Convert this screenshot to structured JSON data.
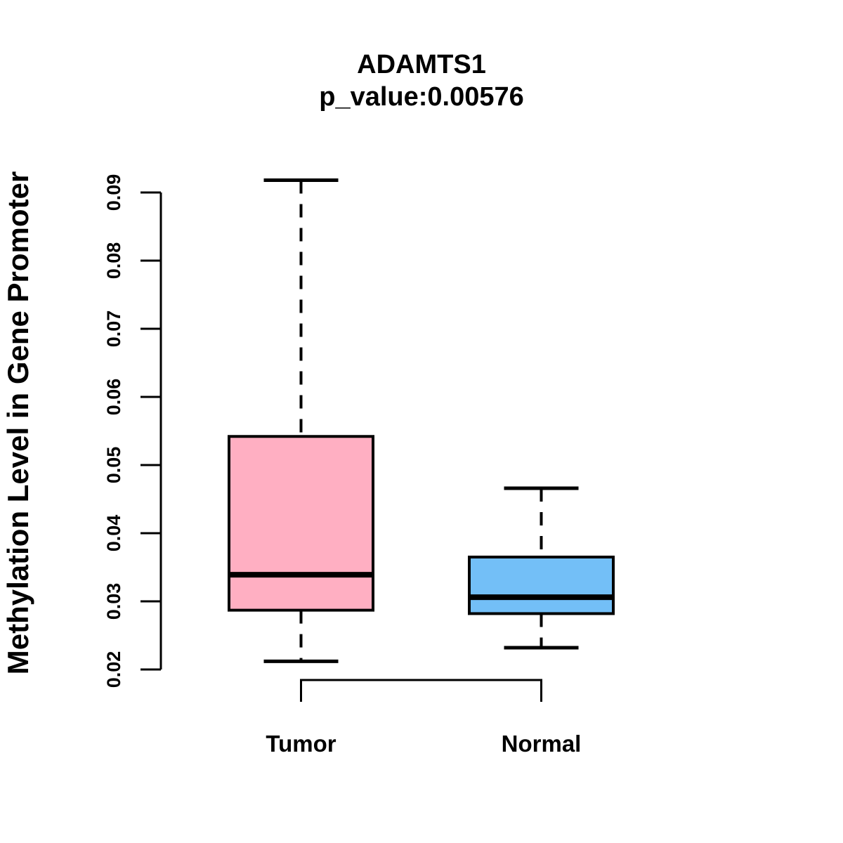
{
  "title": "ADAMTS1",
  "subtitle": "p_value:0.00576",
  "chart_data": {
    "type": "boxplot",
    "title": "ADAMTS1",
    "subtitle": "p_value:0.00576",
    "xlabel": "",
    "ylabel": "Methylation Level in Gene Promoter",
    "ylim": [
      0.02,
      0.09
    ],
    "grid": false,
    "legend": "none",
    "y_ticks": [
      {
        "label": "0.02",
        "value": 0.02
      },
      {
        "label": "0.03",
        "value": 0.03
      },
      {
        "label": "0.04",
        "value": 0.04
      },
      {
        "label": "0.05",
        "value": 0.05
      },
      {
        "label": "0.06",
        "value": 0.06
      },
      {
        "label": "0.07",
        "value": 0.07
      },
      {
        "label": "0.08",
        "value": 0.08
      },
      {
        "label": "0.09",
        "value": 0.09
      }
    ],
    "categories": [
      "Tumor",
      "Normal"
    ],
    "series": [
      {
        "name": "Tumor",
        "fill_color": "#FFAFC2",
        "stroke_color": "#000000",
        "whisker_low": 0.0212,
        "q1": 0.0287,
        "median": 0.0339,
        "q3": 0.0542,
        "whisker_high": 0.0918
      },
      {
        "name": "Normal",
        "fill_color": "#73BFF7",
        "stroke_color": "#000000",
        "whisker_low": 0.0232,
        "q1": 0.0282,
        "median": 0.0306,
        "q3": 0.0365,
        "whisker_high": 0.0466
      }
    ],
    "colors": {
      "axis": "#000000",
      "text": "#000000",
      "tumor_fill": "#FFAFC2",
      "normal_fill": "#73BFF7"
    }
  }
}
